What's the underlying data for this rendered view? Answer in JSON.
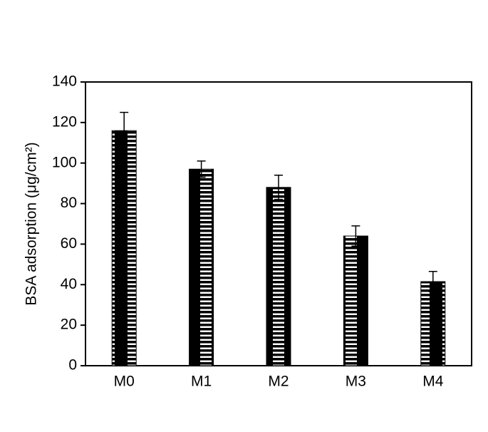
{
  "chart_data": {
    "type": "bar",
    "y_label": "BSA adsorption (μg/cm²)",
    "categories": [
      "M0",
      "M1",
      "M2",
      "M3",
      "M4"
    ],
    "values": [
      116,
      97,
      88,
      64,
      41.5
    ],
    "errors": [
      9,
      4,
      6,
      5,
      5
    ],
    "color": "#000000",
    "ylim": [
      0,
      140
    ],
    "yticks": [
      0,
      20,
      40,
      60,
      80,
      100,
      120,
      140
    ],
    "grid": false
  }
}
